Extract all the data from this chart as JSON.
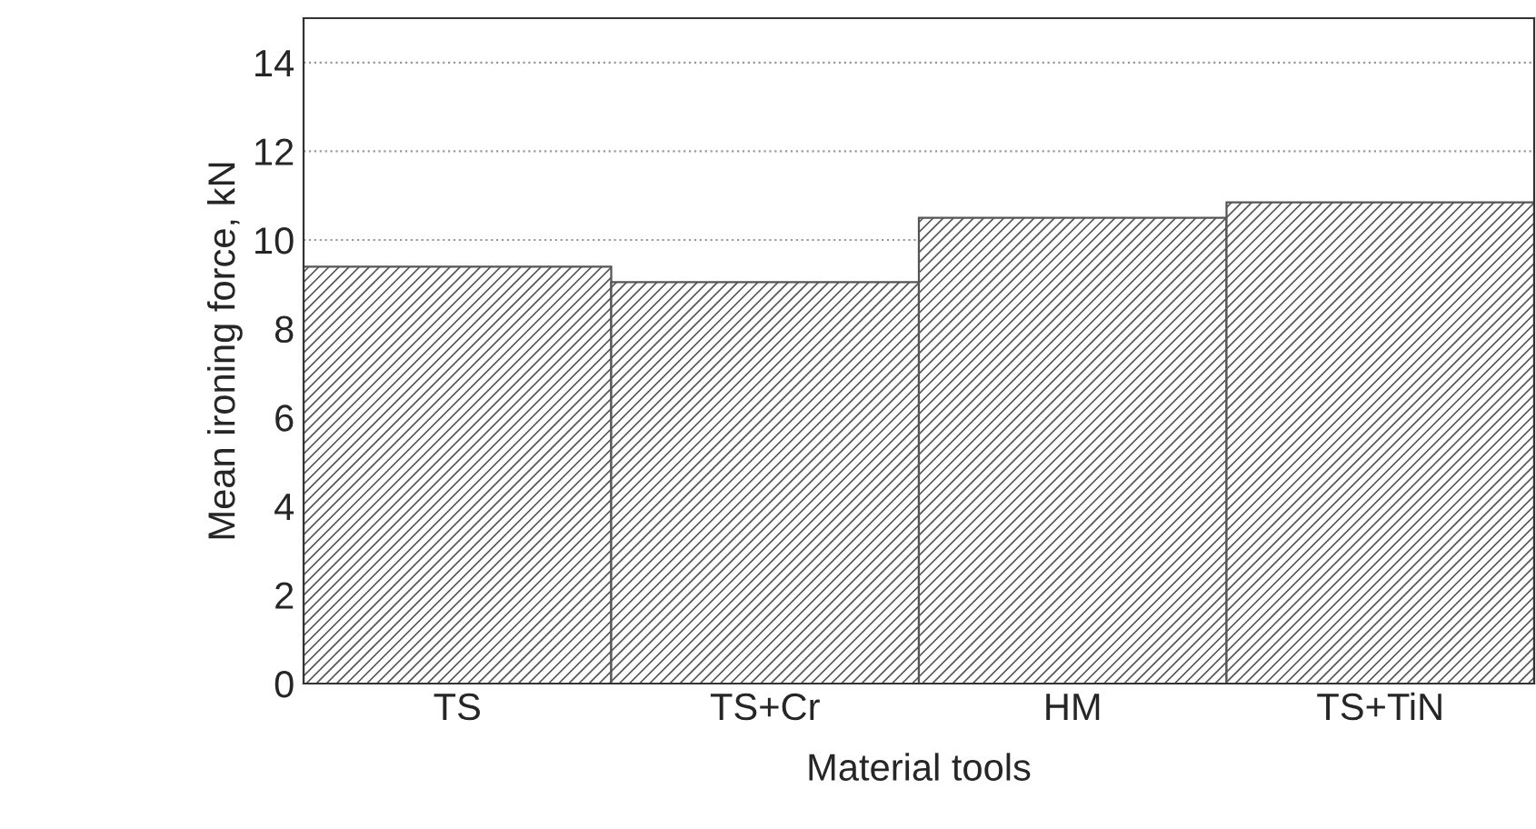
{
  "chart_data": {
    "type": "bar",
    "xlabel": "Material tools",
    "ylabel": "Mean ironing force, kN",
    "categories": [
      "TS",
      "TS+Cr",
      "HM",
      "TS+TiN"
    ],
    "values": [
      9.4,
      9.05,
      10.5,
      10.85
    ],
    "color": "#555555",
    "ylim": [
      0,
      15
    ],
    "yticks": [
      0,
      2,
      4,
      6,
      8,
      10,
      12,
      14
    ],
    "grid": "y"
  }
}
